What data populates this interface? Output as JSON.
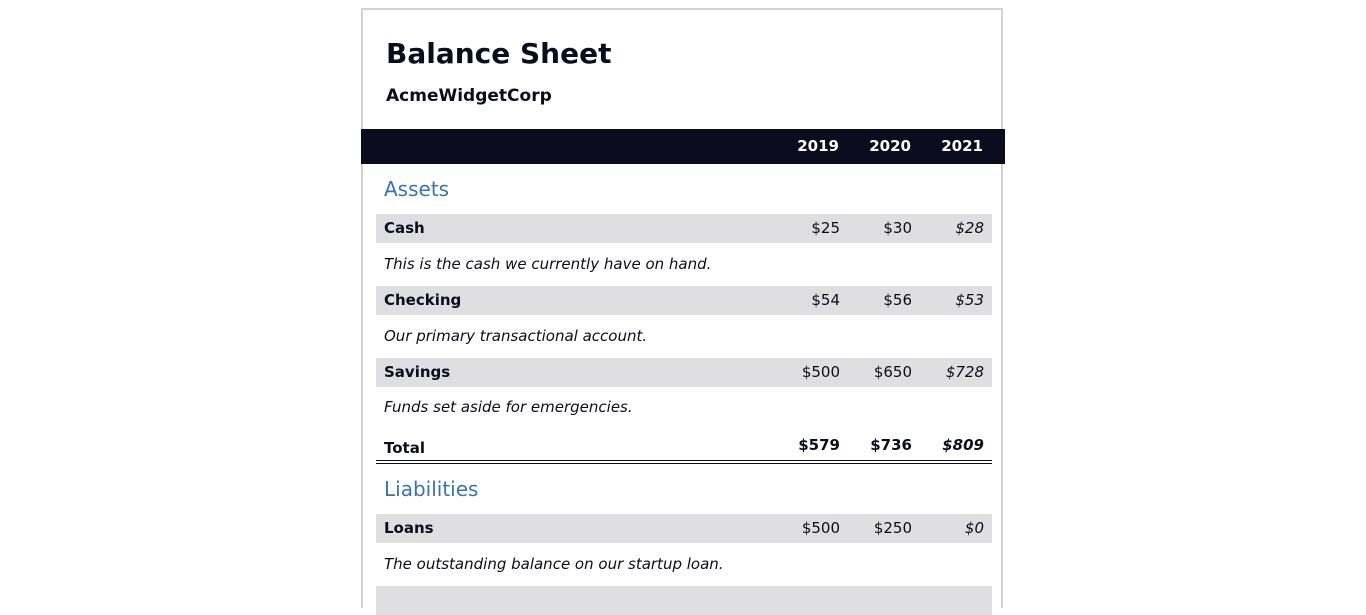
{
  "title": "Balance Sheet",
  "company": "AcmeWidgetCorp",
  "years": [
    "2019",
    "2020",
    "2021"
  ],
  "sections": [
    {
      "name": "Assets",
      "items": [
        {
          "label": "Cash",
          "values": [
            "$25",
            "$30",
            "$28"
          ],
          "description": "This is the cash we currently have on hand."
        },
        {
          "label": "Checking",
          "values": [
            "$54",
            "$56",
            "$53"
          ],
          "description": "Our primary transactional account."
        },
        {
          "label": "Savings",
          "values": [
            "$500",
            "$650",
            "$728"
          ],
          "description": "Funds set aside for emergencies."
        }
      ],
      "total": {
        "label": "Total",
        "values": [
          "$579",
          "$736",
          "$809"
        ]
      }
    },
    {
      "name": "Liabilities",
      "items": [
        {
          "label": "Loans",
          "values": [
            "$500",
            "$250",
            "$0"
          ],
          "description": "The outstanding balance on our startup loan."
        }
      ]
    }
  ]
}
